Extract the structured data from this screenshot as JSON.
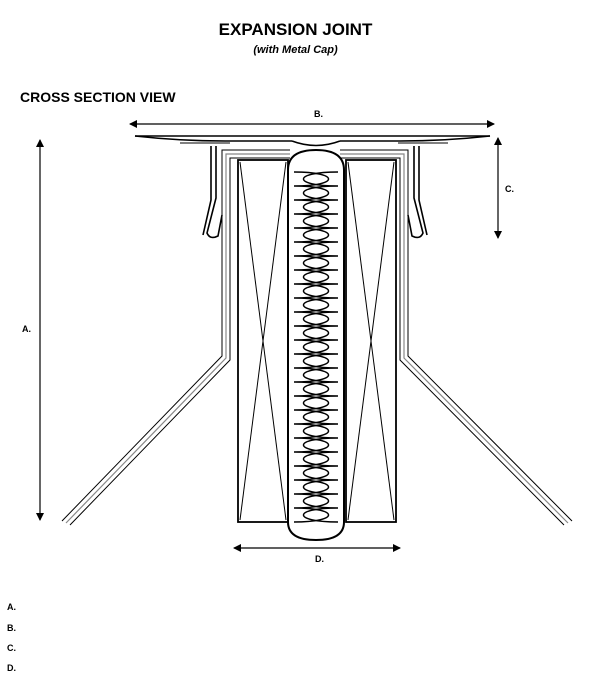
{
  "title": "EXPANSION JOINT",
  "subtitle": "(with Metal Cap)",
  "section_heading": "CROSS SECTION VIEW",
  "dimensions": {
    "a": "A.",
    "b": "B.",
    "c": "C.",
    "d": "D."
  },
  "legend": [
    {
      "label": "A."
    },
    {
      "label": "B."
    },
    {
      "label": "C."
    },
    {
      "label": "D."
    }
  ]
}
